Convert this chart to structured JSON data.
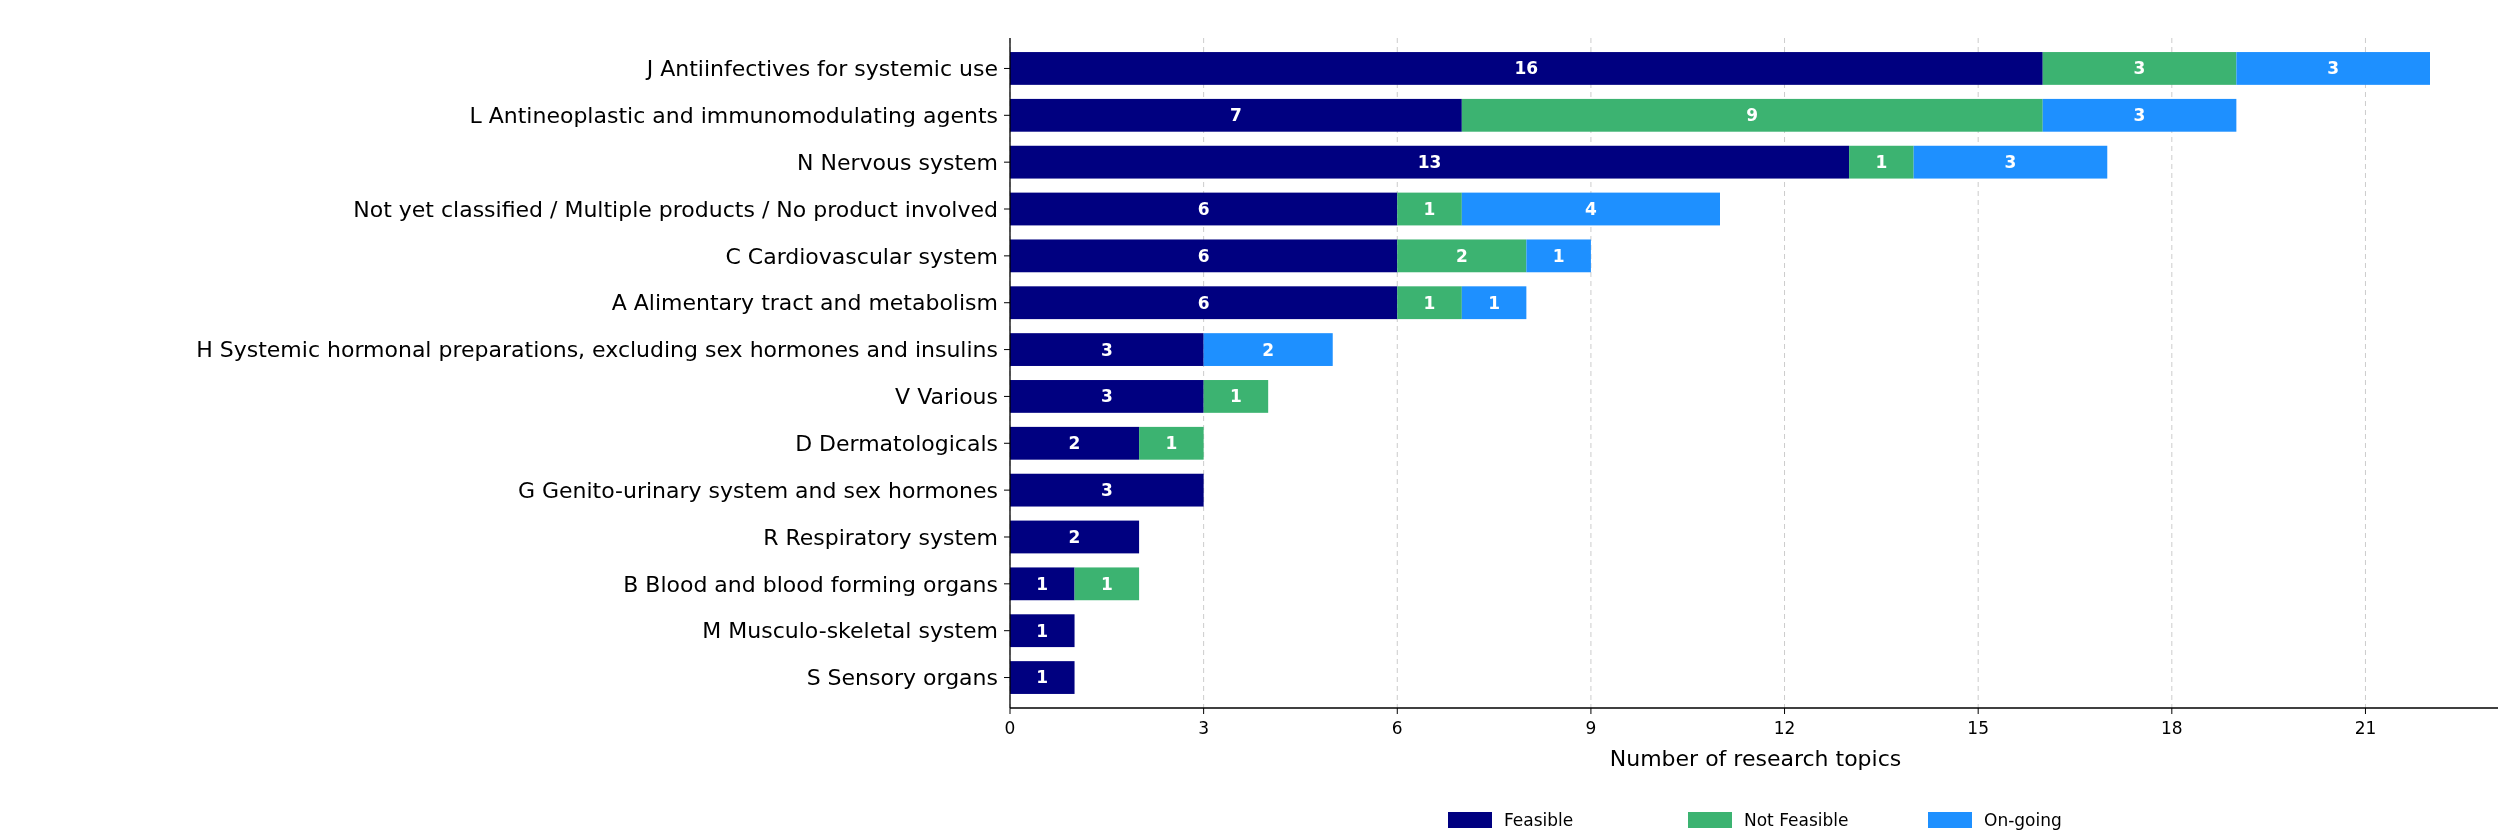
{
  "chart_data": {
    "type": "bar",
    "orientation": "horizontal",
    "stacked": true,
    "xlabel": "Number of research topics",
    "categories": [
      "J Antiinfectives for systemic use",
      "L Antineoplastic and immunomodulating agents",
      "N Nervous system",
      "Not yet classified / Multiple products / No product involved",
      "C Cardiovascular system",
      "A Alimentary tract and metabolism",
      "H Systemic hormonal preparations, excluding sex hormones and insulins",
      "V Various",
      "D Dermatologicals",
      "G Genito-urinary system and sex hormones",
      "R Respiratory system",
      "B Blood and blood forming organs",
      "M Musculo-skeletal system",
      "S Sensory organs"
    ],
    "series": [
      {
        "name": "Feasible",
        "color": "#000080",
        "values": [
          16,
          7,
          13,
          6,
          6,
          6,
          3,
          3,
          2,
          3,
          2,
          1,
          1,
          1
        ]
      },
      {
        "name": "Not Feasible",
        "color": "#3cb371",
        "values": [
          3,
          9,
          1,
          1,
          2,
          1,
          null,
          1,
          1,
          null,
          null,
          1,
          null,
          null
        ]
      },
      {
        "name": "On-going",
        "color": "#1e90ff",
        "values": [
          3,
          3,
          3,
          4,
          1,
          1,
          2,
          null,
          null,
          null,
          null,
          null,
          null,
          null
        ]
      }
    ],
    "xlim": [
      0,
      23.1
    ],
    "xticks": [
      0,
      3,
      6,
      9,
      12,
      15,
      18,
      21
    ],
    "grid": "x",
    "legend": "bottom",
    "data_labels": true
  }
}
